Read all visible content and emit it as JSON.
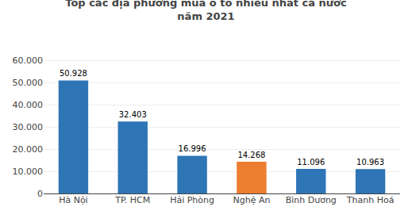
{
  "chart_data": {
    "type": "bar",
    "title": "Top các địa phương mua ô tô nhiều nhất cả nước",
    "subtitle": "năm 2021",
    "categories": [
      "Hà Nội",
      "TP. HCM",
      "Hải Phòng",
      "Nghệ An",
      "Bình Dương",
      "Thanh Hoá"
    ],
    "values": [
      50928,
      32403,
      16996,
      14268,
      11096,
      10963
    ],
    "value_labels": [
      "50.928",
      "32.403",
      "16.996",
      "14.268",
      "11.096",
      "10.963"
    ],
    "colors": [
      "#2e75b6",
      "#2e75b6",
      "#2e75b6",
      "#ed7d31",
      "#2e75b6",
      "#2e75b6"
    ],
    "data_labels": true,
    "ylim": [
      0,
      65000
    ],
    "yticks": [
      0,
      {
        "value": 10000,
        "label": "10.000"
      },
      {
        "value": 20000,
        "label": "20.000"
      },
      {
        "value": 30000,
        "label": "30.000"
      },
      {
        "value": 40000,
        "label": "40.000"
      },
      {
        "value": 50000,
        "label": "50.000"
      },
      {
        "value": 60000,
        "label": "60.000"
      }
    ],
    "grid": true
  }
}
